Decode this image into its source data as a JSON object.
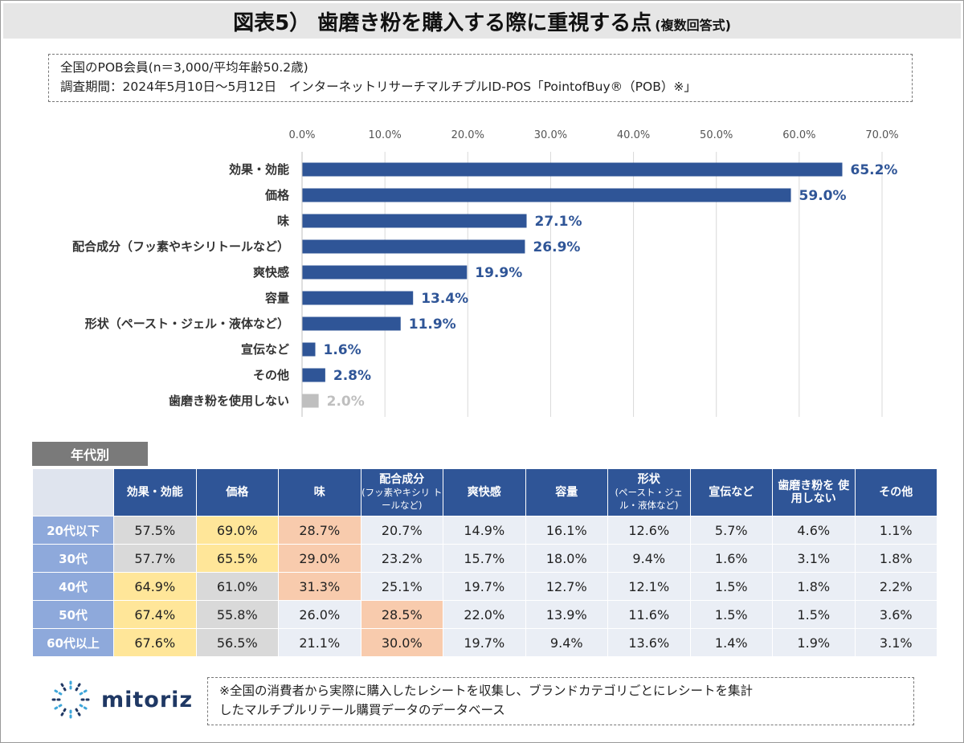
{
  "title": {
    "main": "図表5） 歯磨き粉を購入する際に重視する点",
    "sub": "(複数回答式)"
  },
  "info": {
    "line1": "全国のPOB会員(n＝3,000/平均年齢50.2歳)",
    "line2": "調査期間：2024年5月10日～5月12日　インターネットリサーチマルチプルID-POS「PointofBuy®（POB）※」"
  },
  "chart_data": {
    "type": "bar",
    "orientation": "horizontal",
    "categories": [
      "効果・効能",
      "価格",
      "味",
      "配合成分（フッ素やキシリトールなど）",
      "爽快感",
      "容量",
      "形状（ペースト・ジェル・液体など）",
      "宣伝など",
      "その他",
      "歯磨き粉を使用しない"
    ],
    "values": [
      65.2,
      59.0,
      27.1,
      26.9,
      19.9,
      13.4,
      11.9,
      1.6,
      2.8,
      2.0
    ],
    "value_labels": [
      "65.2%",
      "59.0%",
      "27.1%",
      "26.9%",
      "19.9%",
      "13.4%",
      "11.9%",
      "1.6%",
      "2.8%",
      "2.0%"
    ],
    "xlim": [
      0,
      70
    ],
    "ticks": [
      "0.0%",
      "10.0%",
      "20.0%",
      "30.0%",
      "40.0%",
      "50.0%",
      "60.0%",
      "70.0%"
    ],
    "grid": true,
    "colors": {
      "bar": "#2f5597",
      "bar_muted": "#bfbfbf",
      "label": "#2f5597",
      "label_muted": "#bfbfbf",
      "grid": "#d9d9d9"
    },
    "muted_index": 9
  },
  "table": {
    "section_label": "年代別",
    "columns": [
      {
        "main": "効果・効能",
        "sub": ""
      },
      {
        "main": "価格",
        "sub": ""
      },
      {
        "main": "味",
        "sub": ""
      },
      {
        "main": "配合成分",
        "sub": "(フッ素やキシリ トールなど)"
      },
      {
        "main": "爽快感",
        "sub": ""
      },
      {
        "main": "容量",
        "sub": ""
      },
      {
        "main": "形状",
        "sub": "(ペースト・ジェ ル・液体など)"
      },
      {
        "main": "宣伝など",
        "sub": ""
      },
      {
        "main": "歯磨き粉を 使用しない",
        "sub": ""
      },
      {
        "main": "その他",
        "sub": ""
      }
    ],
    "rows": [
      {
        "label": "20代以下",
        "cells": [
          "57.5%",
          "69.0%",
          "28.7%",
          "20.7%",
          "14.9%",
          "16.1%",
          "12.6%",
          "5.7%",
          "4.6%",
          "1.1%"
        ],
        "highlights": [
          "gray",
          "yellow",
          "orange",
          "",
          "",
          "",
          "",
          "",
          "",
          ""
        ]
      },
      {
        "label": "30代",
        "cells": [
          "57.7%",
          "65.5%",
          "29.0%",
          "23.2%",
          "15.7%",
          "18.0%",
          "9.4%",
          "1.6%",
          "3.1%",
          "1.8%"
        ],
        "highlights": [
          "gray",
          "yellow",
          "orange",
          "",
          "",
          "",
          "",
          "",
          "",
          ""
        ]
      },
      {
        "label": "40代",
        "cells": [
          "64.9%",
          "61.0%",
          "31.3%",
          "25.1%",
          "19.7%",
          "12.7%",
          "12.1%",
          "1.5%",
          "1.8%",
          "2.2%"
        ],
        "highlights": [
          "yellow",
          "gray",
          "orange",
          "",
          "",
          "",
          "",
          "",
          "",
          ""
        ]
      },
      {
        "label": "50代",
        "cells": [
          "67.4%",
          "55.8%",
          "26.0%",
          "28.5%",
          "22.0%",
          "13.9%",
          "11.6%",
          "1.5%",
          "1.5%",
          "3.6%"
        ],
        "highlights": [
          "yellow",
          "gray",
          "",
          "orange",
          "",
          "",
          "",
          "",
          "",
          ""
        ]
      },
      {
        "label": "60代以上",
        "cells": [
          "67.6%",
          "56.5%",
          "21.1%",
          "30.0%",
          "19.7%",
          "9.4%",
          "13.6%",
          "1.4%",
          "1.9%",
          "3.1%"
        ],
        "highlights": [
          "yellow",
          "gray",
          "",
          "orange",
          "",
          "",
          "",
          "",
          "",
          ""
        ]
      }
    ]
  },
  "logo": {
    "text": "mitoriz",
    "icon": "burst-icon",
    "color": "#1f3864",
    "accent": "#3da5d9"
  },
  "footnote": {
    "line1": "※全国の消費者から実際に購入したレシートを収集し、ブランドカテゴリごとにレシートを集計",
    "line2": "したマルチプルリテール購買データのデータベース"
  }
}
